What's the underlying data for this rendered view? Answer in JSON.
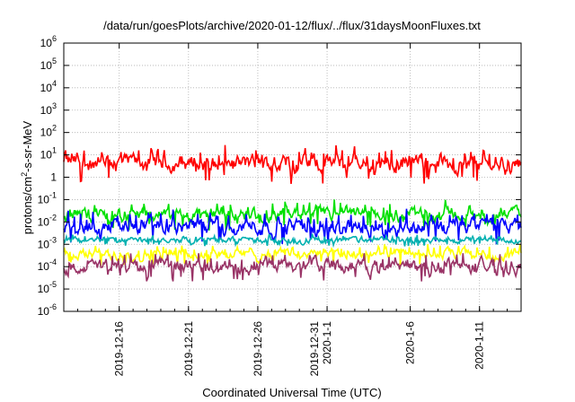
{
  "chart_data": {
    "type": "line",
    "title": "/data/run/goesPlots/archive/2020-01-12/flux/../flux/31daysMoonFluxes.txt",
    "xlabel": "Coordinated Universal Time (UTC)",
    "ylabel": {
      "base": "protons/cm",
      "sup": "2",
      "rest": "-s-sr-MeV"
    },
    "yscale": "log",
    "ylim": [
      1e-06,
      1000000.0
    ],
    "xlim": [
      "2019-12-12",
      "2020-01-14"
    ],
    "grid": true,
    "y_ticks": [
      {
        "base": "10",
        "exp": "-6"
      },
      {
        "base": "10",
        "exp": "-5"
      },
      {
        "base": "10",
        "exp": "-4"
      },
      {
        "base": "10",
        "exp": "-3"
      },
      {
        "base": "10",
        "exp": "-2"
      },
      {
        "base": "10",
        "exp": "-1"
      },
      {
        "base": "1",
        "exp": ""
      },
      {
        "base": "10",
        "exp": "1"
      },
      {
        "base": "10",
        "exp": "2"
      },
      {
        "base": "10",
        "exp": "3"
      },
      {
        "base": "10",
        "exp": "4"
      },
      {
        "base": "10",
        "exp": "5"
      },
      {
        "base": "10",
        "exp": "6"
      }
    ],
    "x_ticks": [
      {
        "date": "2019-12-16",
        "lines": [
          "2019-12-16"
        ]
      },
      {
        "date": "2019-12-21",
        "lines": [
          "2019-12-21"
        ]
      },
      {
        "date": "2019-12-26",
        "lines": [
          "2019-12-26"
        ]
      },
      {
        "date": "2019-12-31",
        "lines": [
          "2019-12-31",
          "2020-1-1"
        ]
      },
      {
        "date": "2020-01-06",
        "lines": [
          "2020-1-6"
        ]
      },
      {
        "date": "2020-01-11",
        "lines": [
          "2020-1-11"
        ]
      }
    ],
    "series": [
      {
        "color": "#ff0000",
        "typical": 4,
        "low": 0.5,
        "high": 30
      },
      {
        "color": "#00e000",
        "typical": 0.02,
        "low": 0.004,
        "high": 0.1
      },
      {
        "color": "#0000ff",
        "typical": 0.006,
        "low": 0.001,
        "high": 0.04
      },
      {
        "color": "#00b0b0",
        "typical": 0.0015,
        "low": 0.0008,
        "high": 0.003
      },
      {
        "color": "#ffff00",
        "typical": 0.00035,
        "low": 0.0001,
        "high": 0.001
      },
      {
        "color": "#993366",
        "typical": 0.0001,
        "low": 2e-05,
        "high": 0.0004
      }
    ]
  }
}
